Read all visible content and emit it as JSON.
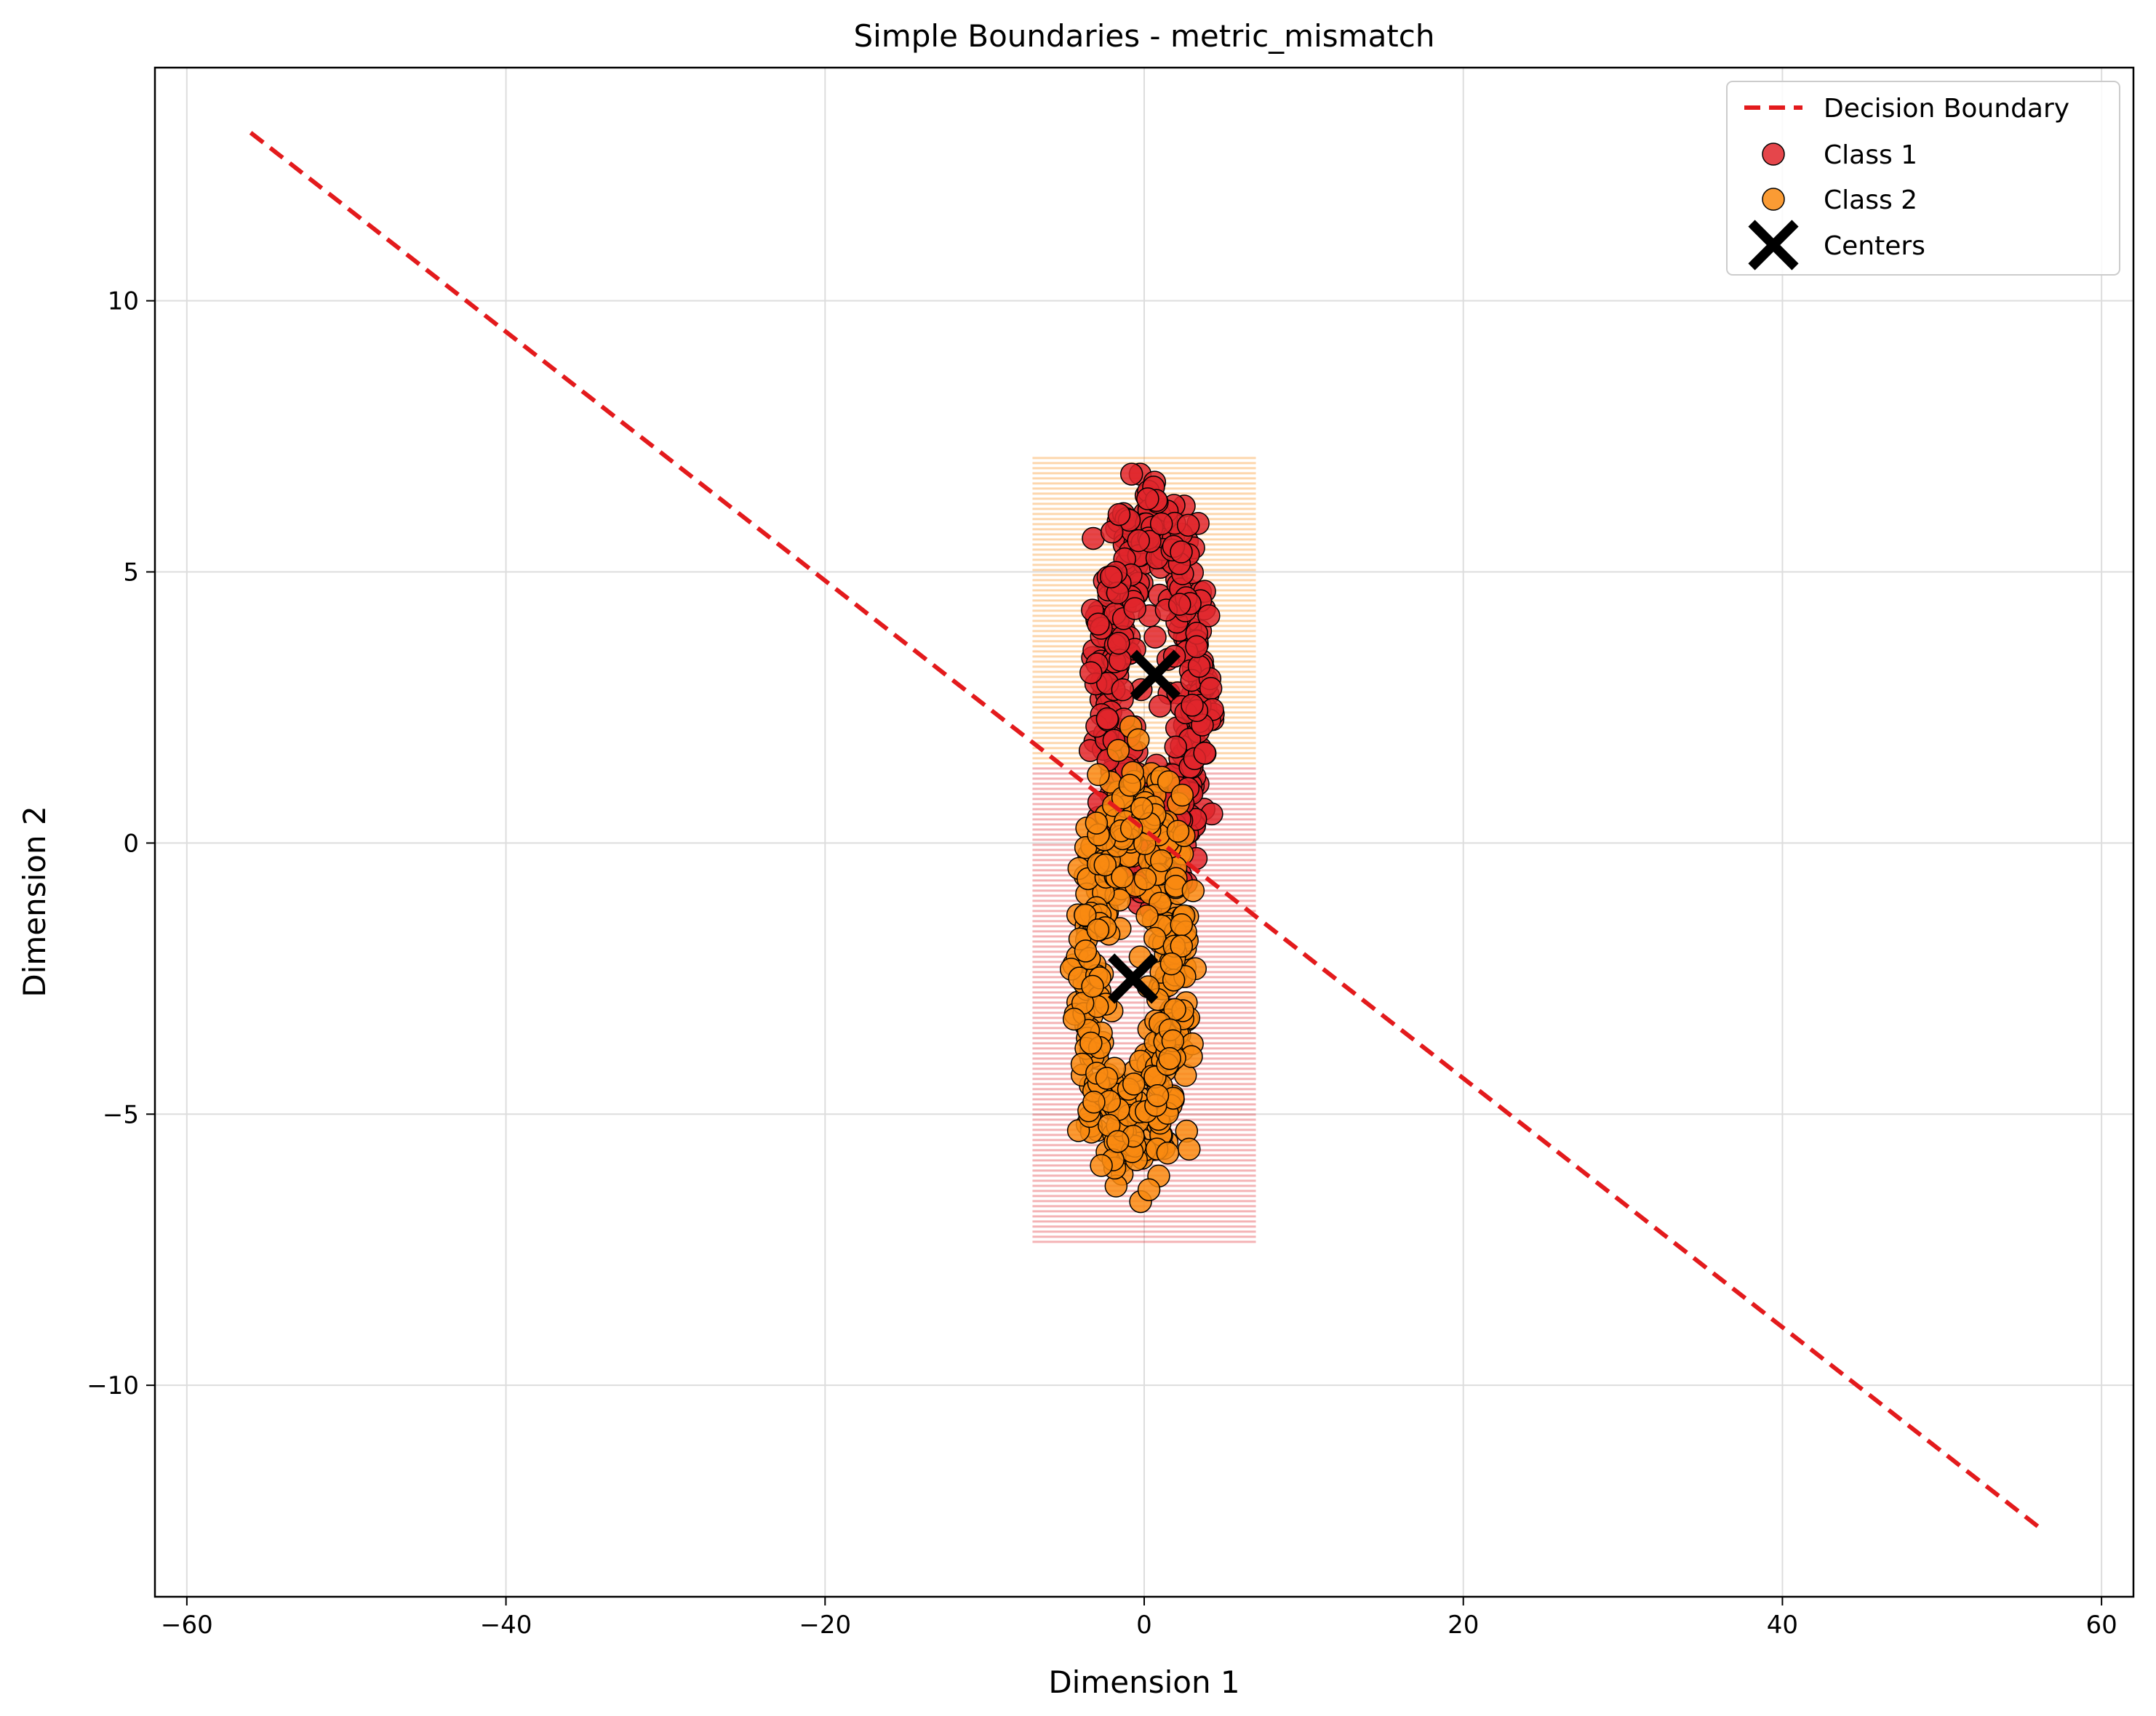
{
  "chart_data": {
    "type": "scatter",
    "title": "Simple Boundaries - metric_mismatch",
    "xlabel": "Dimension 1",
    "ylabel": "Dimension 2",
    "xlim": [
      -62,
      62
    ],
    "ylim": [
      -13.9,
      14.3
    ],
    "xticks": [
      -60,
      -40,
      -20,
      0,
      20,
      40,
      60
    ],
    "yticks": [
      -10,
      -5,
      0,
      5,
      10
    ],
    "xtick_labels": [
      "−60",
      "−40",
      "−20",
      "0",
      "20",
      "40",
      "60"
    ],
    "ytick_labels": [
      "−10",
      "−5",
      "0",
      "5",
      "10"
    ],
    "grid": true,
    "legend_position": "top-right",
    "colors": {
      "class1": "#e0262b",
      "class2": "#f98a10",
      "boundary": "#e31a1c",
      "centers": "#000000"
    },
    "decision_boundary": {
      "name": "Decision Boundary",
      "x": [
        -56,
        56
      ],
      "y": [
        13.1,
        -12.6
      ]
    },
    "background_region": {
      "x": [
        -7,
        7
      ],
      "y": [
        -7.4,
        7.1
      ],
      "split_y": 1.4
    },
    "series": [
      {
        "name": "Class 1",
        "shape": "ring",
        "center": [
          0.5,
          2.9
        ],
        "rx": 5.0,
        "ry": 2.6,
        "thickness": 0.9,
        "count": 420
      },
      {
        "name": "Class 2",
        "shape": "ring",
        "center": [
          -0.7,
          -2.4
        ],
        "rx": 4.9,
        "ry": 2.7,
        "thickness": 0.9,
        "count": 420
      }
    ],
    "centers": {
      "name": "Centers",
      "points": [
        [
          0.7,
          3.1
        ],
        [
          -0.7,
          -2.5
        ]
      ]
    }
  }
}
